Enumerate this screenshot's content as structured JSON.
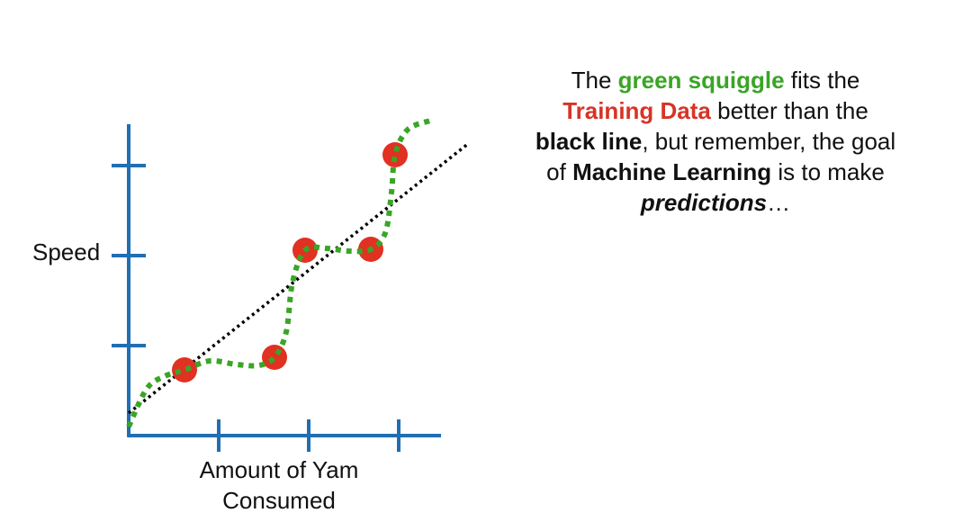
{
  "chart_data": {
    "type": "scatter",
    "xlabel": "Amount of Yam Consumed",
    "xlabel_lines": [
      "Amount of Yam",
      "Consumed"
    ],
    "ylabel": "Speed",
    "x_ticks": 3,
    "y_ticks": 3,
    "grid": false,
    "points": [
      {
        "x": 0.62,
        "y": 0.73
      },
      {
        "x": 1.62,
        "y": 0.87
      },
      {
        "x": 1.96,
        "y": 2.06
      },
      {
        "x": 2.69,
        "y": 2.07
      },
      {
        "x": 2.96,
        "y": 3.12
      }
    ],
    "series": [
      {
        "name": "green squiggle",
        "style": "dotted",
        "color": "#3aa526",
        "x": [
          0.0,
          0.2,
          0.4,
          0.62,
          0.9,
          1.2,
          1.45,
          1.62,
          1.75,
          1.82,
          1.96,
          2.2,
          2.45,
          2.69,
          2.85,
          2.92,
          2.96,
          3.1,
          3.35
        ],
        "y": [
          0.1,
          0.52,
          0.66,
          0.73,
          0.83,
          0.79,
          0.78,
          0.87,
          1.15,
          1.7,
          2.06,
          2.08,
          2.05,
          2.07,
          2.25,
          2.7,
          3.12,
          3.4,
          3.5
        ]
      },
      {
        "name": "black line",
        "style": "dotted",
        "color": "#000000",
        "x": [
          0.0,
          3.78
        ],
        "y": [
          0.25,
          3.25
        ]
      }
    ],
    "colors": {
      "axis": "#1f6fb2",
      "point": "#e03122",
      "squiggle": "#3aa526",
      "line": "#000000"
    }
  },
  "caption": {
    "t1": "The ",
    "green": "green squiggle",
    "t2": " fits the",
    "red": "Training Data",
    "t3": " better than the",
    "black_line": "black line",
    "t4": ", but remember, the goal",
    "t5": "of ",
    "ml": "Machine Learning",
    "t6": " is to make",
    "predictions": "predictions",
    "t7": "…"
  }
}
